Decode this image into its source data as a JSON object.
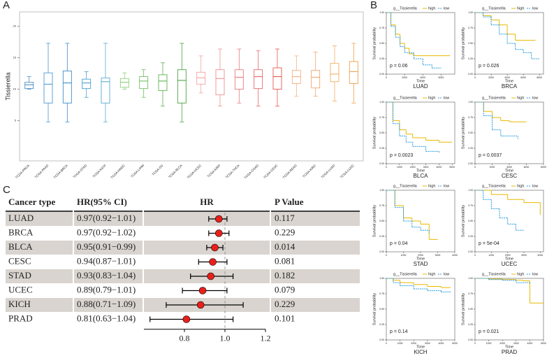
{
  "figure": {
    "panel_labels": [
      "A",
      "B",
      "C"
    ]
  },
  "chart_data": [
    {
      "type": "box",
      "y_label": "Tissierella",
      "categories": [
        "TCGA-PRCA",
        "TCGA-PAAD",
        "TCGA-BRCA",
        "TCGA-STAD",
        "TCGA-KICH",
        "TCGA-HNSC",
        "TCGA-LIHM",
        "TCGA-OV",
        "TCGA-BLCA",
        "TCGA-UCEC",
        "TCGA-KIRP",
        "TCGA-THCA",
        "TCGA-COAD",
        "TCGA-CESC",
        "TCGA-READ",
        "TCGA-KIRC",
        "TCGA-LUAD",
        "TCGA-LUSC"
      ],
      "max": [
        12.0,
        17.3,
        17.3,
        12.8,
        17.3,
        12.6,
        13.1,
        14.2,
        17.3,
        15.3,
        16.4,
        16.4,
        16.1,
        16.4,
        15.3,
        15.9,
        16.9,
        17.3
      ],
      "q3": [
        11.1,
        12.6,
        12.9,
        11.6,
        11.8,
        11.7,
        12.0,
        12.3,
        13.1,
        12.7,
        13.1,
        13.1,
        13.1,
        13.4,
        13.0,
        13.0,
        14.1,
        14.4
      ],
      "median": [
        10.7,
        10.8,
        11.0,
        11.0,
        11.2,
        11.1,
        11.3,
        11.3,
        11.4,
        11.8,
        11.7,
        11.9,
        12.0,
        12.0,
        12.0,
        11.9,
        12.4,
        12.8
      ],
      "q1": [
        10.1,
        7.8,
        7.8,
        10.1,
        7.8,
        10.3,
        10.1,
        9.8,
        7.8,
        10.8,
        9.1,
        10.0,
        10.1,
        10.0,
        10.9,
        10.2,
        11.2,
        10.9
      ],
      "min": [
        10.0,
        4.8,
        4.8,
        8.7,
        4.8,
        10.0,
        8.7,
        7.3,
        4.8,
        9.4,
        7.3,
        7.8,
        7.3,
        7.3,
        8.9,
        8.9,
        8.1,
        7.8
      ],
      "colors": [
        "#4e8fc9",
        "#4e9ad0",
        "#3f8ec8",
        "#4aa0cf",
        "#5aabd3",
        "#8ccf7a",
        "#6fbf5e",
        "#5cb24e",
        "#4aa33e",
        "#f4a3a3",
        "#f09090",
        "#ec7c7c",
        "#e86868",
        "#e45a50",
        "#f5b088",
        "#f3a46f",
        "#f0b060",
        "#eda24a"
      ],
      "ylim": [
        -1.4,
        22.3
      ],
      "yticks": [
        5,
        10,
        15,
        20
      ]
    },
    {
      "type": "forest",
      "columns": [
        "Cancer type",
        "HR(95% CI)",
        "HR",
        "P Value"
      ],
      "rows": [
        {
          "cancer": "LUAD",
          "ci_text": "0.97(0.92−1.01)",
          "hr": 0.97,
          "lo": 0.92,
          "hi": 1.01,
          "p": 0.117
        },
        {
          "cancer": "BRCA",
          "ci_text": "0.97(0.92−1.02)",
          "hr": 0.97,
          "lo": 0.92,
          "hi": 1.02,
          "p": 0.229
        },
        {
          "cancer": "BLCA",
          "ci_text": "0.95(0.91−0.99)",
          "hr": 0.95,
          "lo": 0.91,
          "hi": 0.99,
          "p": 0.014
        },
        {
          "cancer": "CESC",
          "ci_text": "0.94(0.87−1.01)",
          "hr": 0.94,
          "lo": 0.87,
          "hi": 1.01,
          "p": 0.081
        },
        {
          "cancer": "STAD",
          "ci_text": "0.93(0.83−1.04)",
          "hr": 0.93,
          "lo": 0.83,
          "hi": 1.04,
          "p": 0.182
        },
        {
          "cancer": "UCEC",
          "ci_text": "0.89(0.79−1.01)",
          "hr": 0.89,
          "lo": 0.79,
          "hi": 1.01,
          "p": 0.079
        },
        {
          "cancer": "KICH",
          "ci_text": "0.88(0.71−1.09)",
          "hr": 0.88,
          "lo": 0.71,
          "hi": 1.09,
          "p": 0.229
        },
        {
          "cancer": "PRAD",
          "ci_text": "0.81(0.63−1.04)",
          "hr": 0.81,
          "lo": 0.63,
          "hi": 1.04,
          "p": 0.101
        }
      ],
      "xlim": [
        0.6,
        1.2
      ],
      "xticks": [
        0.8,
        {
          "value": 1,
          "label": "1.0"
        },
        1.2
      ],
      "ref_line": 1,
      "color": "#e8201c"
    },
    {
      "type": "km",
      "label": "LUAD",
      "p_text": "p = 0.06",
      "legend_title": "g__Tissierella",
      "x_label": "Time",
      "y_label": "Survival probability",
      "xlim": [
        0,
        7500
      ],
      "xticks": [
        0,
        2000,
        4000,
        6000
      ],
      "ylim": [
        0,
        1
      ],
      "yticks": [
        {
          "value": 0,
          "label": "0.00"
        },
        {
          "value": 0.25,
          "label": "0.25"
        },
        {
          "value": 0.5,
          "label": "0.50"
        },
        {
          "value": 0.75,
          "label": "0.75"
        },
        {
          "value": 1,
          "label": "1.00"
        }
      ],
      "series": [
        {
          "name": "high",
          "color": "#E7B800",
          "x": [
            0,
            500,
            1000,
            1500,
            2000,
            2500,
            3000,
            7000
          ],
          "values": [
            1,
            0.8,
            0.65,
            0.5,
            0.42,
            0.33,
            0.3,
            0.3
          ]
        },
        {
          "name": "low",
          "color": "#2E9FDF",
          "x": [
            0,
            500,
            1000,
            1500,
            2000,
            3000,
            4000,
            5000,
            6000
          ],
          "values": [
            1,
            0.78,
            0.6,
            0.45,
            0.35,
            0.25,
            0.15,
            0.1,
            0.1
          ]
        }
      ]
    },
    {
      "type": "km",
      "label": "BRCA",
      "p_text": "p = 0.026",
      "legend_title": "g__Tissierella",
      "x_label": "Time",
      "y_label": "Survival probability",
      "xlim": [
        0,
        8500
      ],
      "xticks": [
        0,
        2000,
        4000,
        6000,
        8000
      ],
      "ylim": [
        0,
        1
      ],
      "yticks": [
        {
          "value": 0,
          "label": "0.00"
        },
        {
          "value": 0.25,
          "label": "0.25"
        },
        {
          "value": 0.5,
          "label": "0.50"
        },
        {
          "value": 0.75,
          "label": "0.75"
        },
        {
          "value": 1,
          "label": "1.00"
        }
      ],
      "series": [
        {
          "name": "high",
          "color": "#E7B800",
          "x": [
            0,
            1000,
            2000,
            3000,
            4000,
            5000,
            6000,
            7500
          ],
          "values": [
            1,
            0.95,
            0.88,
            0.8,
            0.65,
            0.55,
            0.55,
            0.55
          ]
        },
        {
          "name": "low",
          "color": "#2E9FDF",
          "x": [
            0,
            1000,
            2000,
            3000,
            4000,
            5000,
            6000,
            7000,
            8000
          ],
          "values": [
            1,
            0.93,
            0.8,
            0.65,
            0.5,
            0.4,
            0.35,
            0.25,
            0.25
          ]
        }
      ]
    },
    {
      "type": "km",
      "label": "BLCA",
      "p_text": "p = 0.0023",
      "legend_title": "g__Tissierella",
      "x_label": "Time",
      "y_label": "Survival probability",
      "xlim": [
        0,
        5200
      ],
      "xticks": [
        0,
        1000,
        2000,
        3000,
        4000,
        5000
      ],
      "ylim": [
        0,
        1
      ],
      "yticks": [
        {
          "value": 0,
          "label": "0.00"
        },
        {
          "value": 0.25,
          "label": "0.25"
        },
        {
          "value": 0.5,
          "label": "0.50"
        },
        {
          "value": 0.75,
          "label": "0.75"
        },
        {
          "value": 1,
          "label": "1.00"
        }
      ],
      "series": [
        {
          "name": "high",
          "color": "#E7B800",
          "x": [
            0,
            500,
            1000,
            1500,
            2000,
            3000,
            4000,
            5000
          ],
          "values": [
            1,
            0.7,
            0.55,
            0.48,
            0.42,
            0.38,
            0.35,
            0.35
          ]
        },
        {
          "name": "low",
          "color": "#2E9FDF",
          "x": [
            0,
            500,
            1000,
            1500,
            2000,
            3000,
            4000
          ],
          "values": [
            1,
            0.65,
            0.45,
            0.35,
            0.28,
            0.2,
            0.18
          ]
        }
      ]
    },
    {
      "type": "km",
      "label": "CESC",
      "p_text": "p = 0.0037",
      "legend_title": "g__Tissierella",
      "x_label": "Time",
      "y_label": "Survival probability",
      "xlim": [
        0,
        8000
      ],
      "xticks": [
        0,
        2000,
        4000,
        6000,
        8000
      ],
      "ylim": [
        0,
        1
      ],
      "yticks": [
        {
          "value": 0,
          "label": "0.00"
        },
        {
          "value": 0.25,
          "label": "0.25"
        },
        {
          "value": 0.5,
          "label": "0.50"
        },
        {
          "value": 0.75,
          "label": "0.75"
        },
        {
          "value": 1,
          "label": "1.00"
        }
      ],
      "series": [
        {
          "name": "high",
          "color": "#E7B800",
          "x": [
            0,
            1000,
            2000,
            3000,
            4000,
            5000,
            6000
          ],
          "values": [
            1,
            0.85,
            0.75,
            0.7,
            0.68,
            0.68,
            0.68
          ]
        },
        {
          "name": "low",
          "color": "#2E9FDF",
          "x": [
            0,
            1000,
            2000,
            3000,
            4000,
            5000
          ],
          "values": [
            1,
            0.78,
            0.55,
            0.45,
            0.45,
            0.4
          ]
        }
      ]
    },
    {
      "type": "km",
      "label": "STAD",
      "p_text": "p = 0.04",
      "legend_title": "g__Tissierella",
      "x_label": "Time",
      "y_label": "Survival probability",
      "xlim": [
        0,
        4000
      ],
      "xticks": [
        0,
        1000,
        2000,
        3000,
        4000
      ],
      "ylim": [
        0,
        1
      ],
      "yticks": [
        {
          "value": 0,
          "label": "0.00"
        },
        {
          "value": 0.25,
          "label": "0.25"
        },
        {
          "value": 0.5,
          "label": "0.50"
        },
        {
          "value": 0.75,
          "label": "0.75"
        },
        {
          "value": 1,
          "label": "1.00"
        }
      ],
      "series": [
        {
          "name": "high",
          "color": "#E7B800",
          "x": [
            0,
            500,
            1000,
            1500,
            2000,
            2500,
            3000
          ],
          "values": [
            1,
            0.75,
            0.55,
            0.5,
            0.45,
            0.2,
            0.2
          ]
        },
        {
          "name": "low",
          "color": "#2E9FDF",
          "x": [
            0,
            500,
            1000,
            1500,
            2000,
            2500
          ],
          "values": [
            1,
            0.72,
            0.5,
            0.4,
            0.35,
            0.3
          ]
        }
      ]
    },
    {
      "type": "km",
      "label": "UCEC",
      "p_text": "p = 5e-04",
      "legend_title": "g__Tissierella",
      "x_label": "Time",
      "y_label": "Survival probability",
      "xlim": [
        0,
        4200
      ],
      "xticks": [
        0,
        1000,
        2000,
        3000,
        4000
      ],
      "ylim": [
        0,
        1
      ],
      "yticks": [
        {
          "value": 0,
          "label": "0.00"
        },
        {
          "value": 0.25,
          "label": "0.25"
        },
        {
          "value": 0.5,
          "label": "0.50"
        },
        {
          "value": 0.75,
          "label": "0.75"
        },
        {
          "value": 1,
          "label": "1.00"
        }
      ],
      "series": [
        {
          "name": "high",
          "color": "#E7B800",
          "x": [
            0,
            1000,
            2000,
            3000,
            4000
          ],
          "values": [
            1,
            0.93,
            0.85,
            0.8,
            0.6
          ]
        },
        {
          "name": "low",
          "color": "#2E9FDF",
          "x": [
            0,
            500,
            1000,
            1500,
            2000,
            2500,
            3000
          ],
          "values": [
            1,
            0.85,
            0.7,
            0.55,
            0.45,
            0.35,
            0.35
          ]
        }
      ]
    },
    {
      "type": "km",
      "label": "KICH",
      "p_text": "p = 0.14",
      "legend_title": "g__Tissierella",
      "x_label": "Time",
      "y_label": "Survival probability",
      "xlim": [
        0,
        5000
      ],
      "xticks": [
        0,
        1000,
        2000,
        3000,
        4000,
        5000
      ],
      "ylim": [
        0,
        1
      ],
      "yticks": [
        {
          "value": 0,
          "label": "0.00"
        },
        {
          "value": 0.25,
          "label": "0.25"
        },
        {
          "value": 0.5,
          "label": "0.50"
        },
        {
          "value": 0.75,
          "label": "0.75"
        },
        {
          "value": 1,
          "label": "1.00"
        }
      ],
      "series": [
        {
          "name": "high",
          "color": "#E7B800",
          "x": [
            0,
            500,
            1000,
            2000,
            3000,
            4000,
            4700
          ],
          "values": [
            1,
            0.97,
            0.93,
            0.9,
            0.87,
            0.85,
            0.85
          ]
        },
        {
          "name": "low",
          "color": "#2E9FDF",
          "x": [
            0,
            500,
            1000,
            2000,
            3000,
            4000,
            4700
          ],
          "values": [
            1,
            0.93,
            0.88,
            0.83,
            0.8,
            0.78,
            0.78
          ]
        }
      ]
    },
    {
      "type": "km",
      "label": "PRAD",
      "p_text": "p = 0.021",
      "legend_title": "g__Tissierella",
      "x_label": "Time",
      "y_label": "Survival probability",
      "xlim": [
        0,
        5000
      ],
      "xticks": [
        0,
        1000,
        2000,
        3000,
        4000,
        5000
      ],
      "ylim": [
        0,
        1
      ],
      "yticks": [
        {
          "value": 0,
          "label": "0.00"
        },
        {
          "value": 0.25,
          "label": "0.25"
        },
        {
          "value": 0.5,
          "label": "0.50"
        },
        {
          "value": 0.75,
          "label": "0.75"
        },
        {
          "value": 1,
          "label": "1.00"
        }
      ],
      "series": [
        {
          "name": "high",
          "color": "#E7B800",
          "x": [
            0,
            1000,
            2000,
            3000,
            3500,
            4000,
            5000
          ],
          "values": [
            1,
            0.99,
            0.98,
            0.97,
            0.96,
            0.6,
            0.6
          ]
        },
        {
          "name": "low",
          "color": "#2E9FDF",
          "x": [
            0,
            1000,
            2000,
            3000,
            4000
          ],
          "values": [
            1,
            0.98,
            0.97,
            0.93,
            0.92
          ]
        }
      ]
    }
  ]
}
